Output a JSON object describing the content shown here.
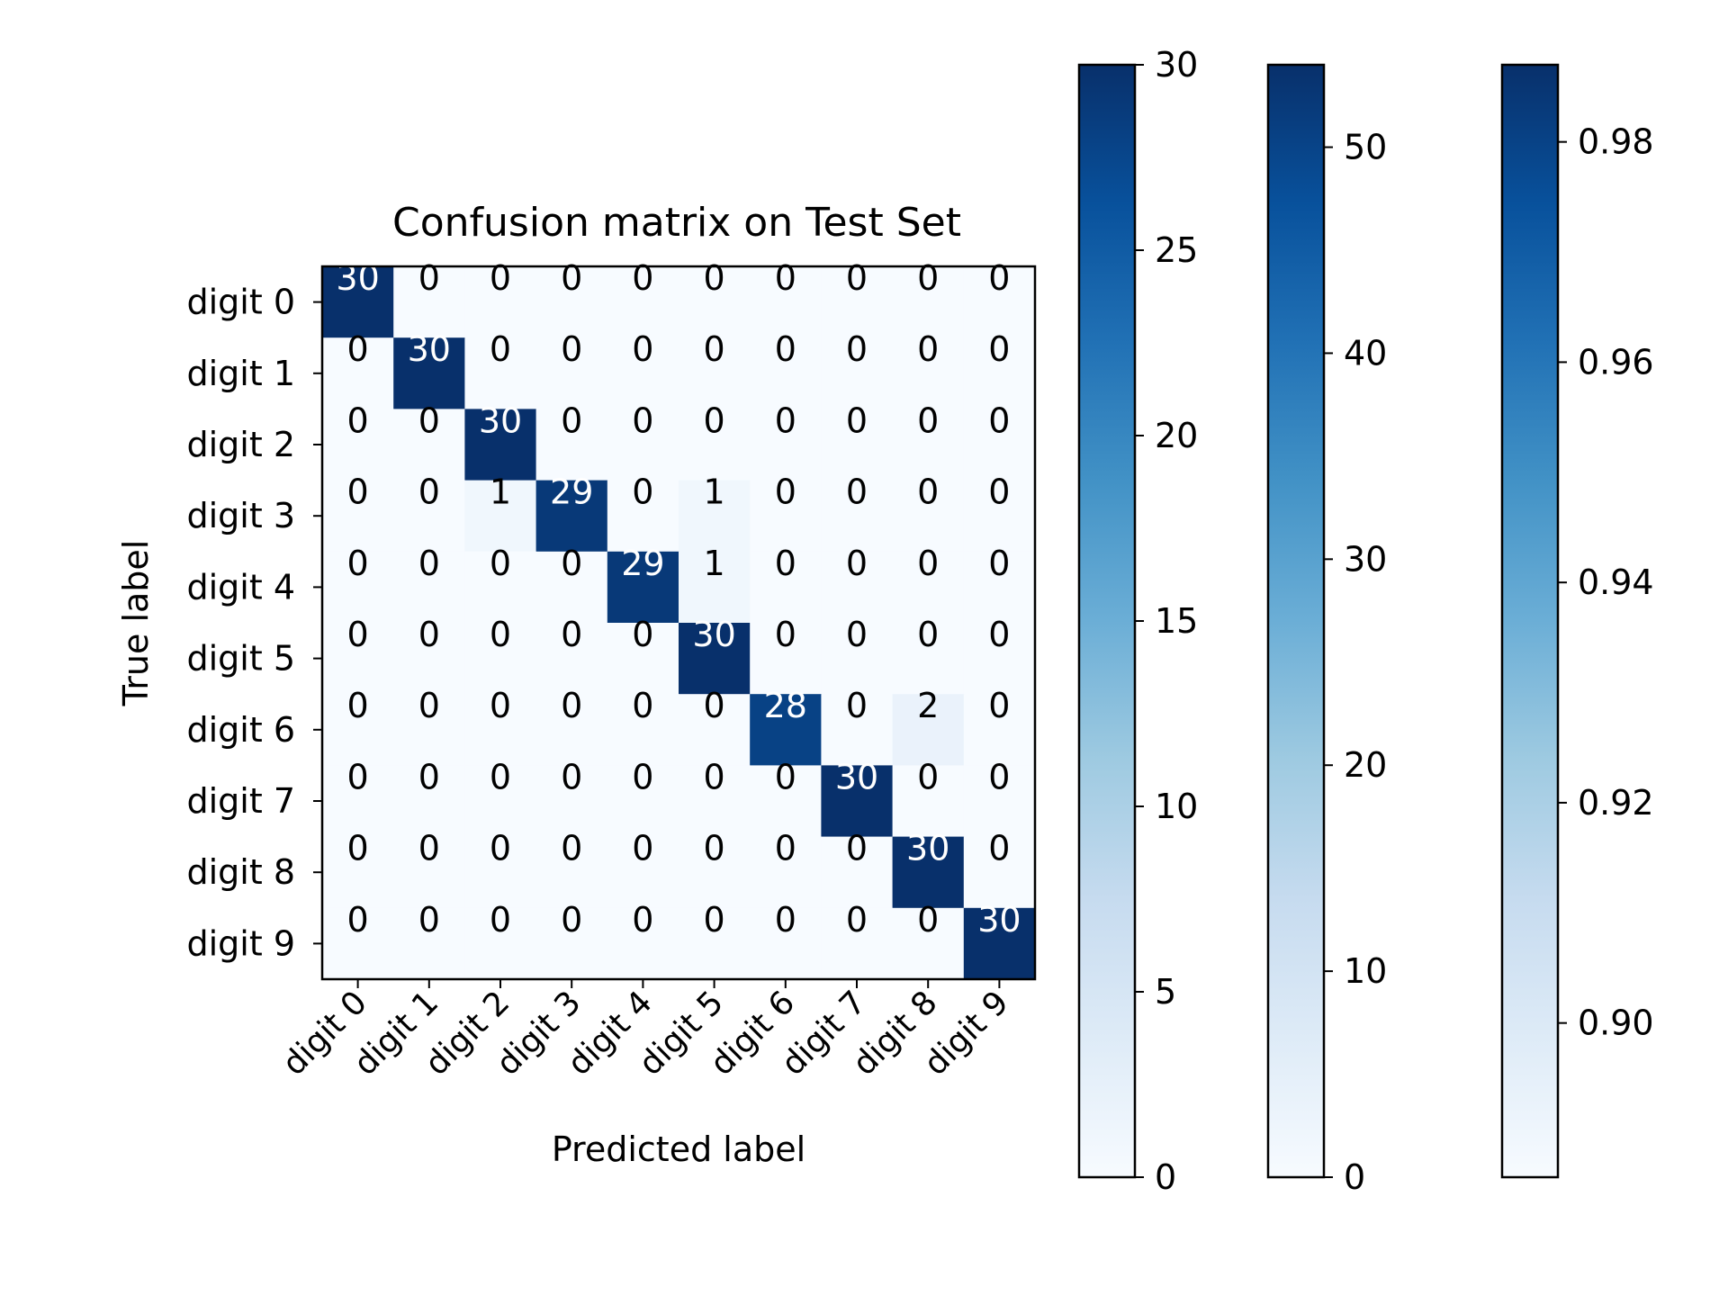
{
  "chart_data": {
    "type": "heatmap",
    "title": "Confusion matrix on Test Set",
    "xlabel": "Predicted label",
    "ylabel": "True label",
    "categories": [
      "digit 0",
      "digit 1",
      "digit 2",
      "digit 3",
      "digit 4",
      "digit 5",
      "digit 6",
      "digit 7",
      "digit 8",
      "digit 9"
    ],
    "matrix": [
      [
        30,
        0,
        0,
        0,
        0,
        0,
        0,
        0,
        0,
        0
      ],
      [
        0,
        30,
        0,
        0,
        0,
        0,
        0,
        0,
        0,
        0
      ],
      [
        0,
        0,
        30,
        0,
        0,
        0,
        0,
        0,
        0,
        0
      ],
      [
        0,
        0,
        1,
        29,
        0,
        1,
        0,
        0,
        0,
        0
      ],
      [
        0,
        0,
        0,
        0,
        29,
        1,
        0,
        0,
        0,
        0
      ],
      [
        0,
        0,
        0,
        0,
        0,
        30,
        0,
        0,
        0,
        0
      ],
      [
        0,
        0,
        0,
        0,
        0,
        0,
        28,
        0,
        2,
        0
      ],
      [
        0,
        0,
        0,
        0,
        0,
        0,
        0,
        30,
        0,
        0
      ],
      [
        0,
        0,
        0,
        0,
        0,
        0,
        0,
        0,
        30,
        0
      ],
      [
        0,
        0,
        0,
        0,
        0,
        0,
        0,
        0,
        0,
        30
      ]
    ],
    "colormap": "Blues",
    "colors": {
      "low": "#f7fbff",
      "high": "#08306b"
    },
    "grid": false,
    "colorbars": [
      {
        "range": [
          0,
          30
        ],
        "ticks": [
          "0",
          "5",
          "10",
          "15",
          "20",
          "25",
          "30"
        ]
      },
      {
        "range": [
          0,
          54
        ],
        "ticks": [
          "0",
          "10",
          "20",
          "30",
          "40",
          "50"
        ]
      },
      {
        "range": [
          0.886,
          0.987
        ],
        "ticks": [
          "0.90",
          "0.92",
          "0.94",
          "0.96",
          "0.98"
        ]
      }
    ]
  }
}
